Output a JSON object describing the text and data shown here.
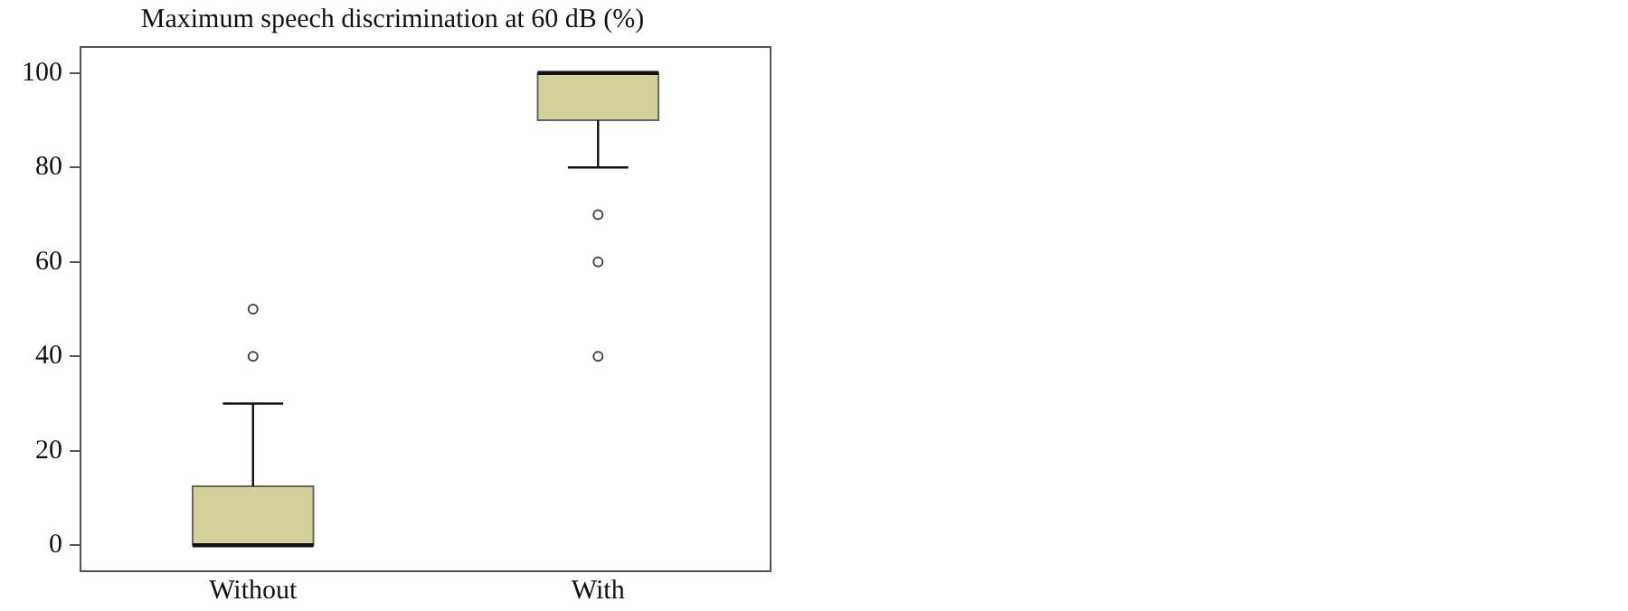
{
  "chart_data": {
    "type": "box",
    "title": "Maximum speech discrimination at 60 dB (%)",
    "categories": [
      "Without",
      "With"
    ],
    "series": [
      {
        "color": "#d4d09a",
        "boxes": [
          {
            "low": 0,
            "q1": 0,
            "median": 0,
            "q3": 12.5,
            "high": 30,
            "outliers": [
              40,
              50
            ]
          },
          {
            "low": 80,
            "q1": 90,
            "median": 100,
            "q3": 100,
            "high": 100,
            "outliers": [
              40,
              60,
              70
            ]
          }
        ]
      }
    ],
    "ylim": [
      -5.5,
      105.5
    ],
    "yticks": [
      0,
      20,
      40,
      60,
      80,
      100
    ],
    "grid": false,
    "marker": "circle"
  }
}
